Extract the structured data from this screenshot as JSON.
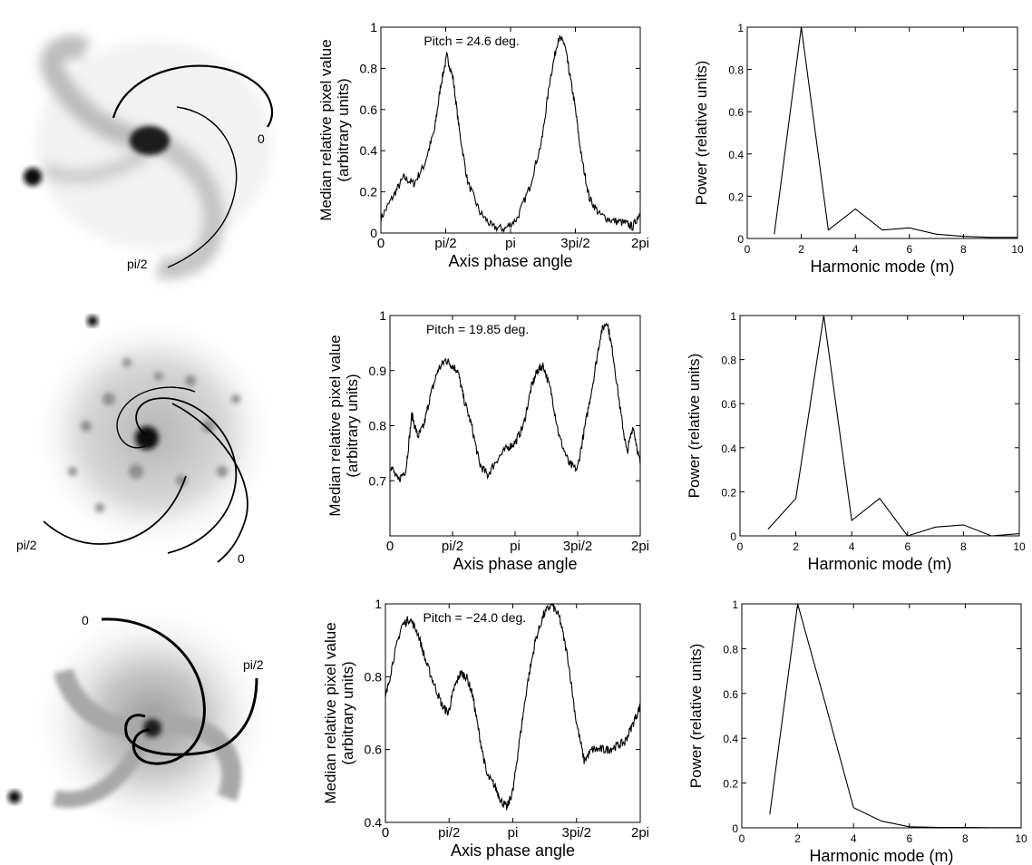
{
  "galaxies": [
    {
      "labels": [
        "0",
        "pi/2"
      ]
    },
    {
      "labels": [
        "pi/2",
        "0"
      ]
    },
    {
      "labels": [
        "0",
        "pi/2"
      ]
    }
  ],
  "chart_data": [
    {
      "type": "line",
      "annotation": "Pitch = 24.6 deg.",
      "xlabel": "Axis phase angle",
      "ylabel_lines": [
        "Median relative pixel value",
        "(arbitrary units)"
      ],
      "xlim": [
        0,
        6.2832
      ],
      "ylim": [
        0,
        1
      ],
      "xticks": [
        0,
        1.5708,
        3.1416,
        4.7124,
        6.2832
      ],
      "xticklabels": [
        "0",
        "pi/2",
        "pi",
        "3pi/2",
        "2pi"
      ],
      "yticks": [
        0,
        0.2,
        0.4,
        0.6,
        0.8,
        1
      ],
      "yticklabels": [
        "0",
        "0.2",
        "0.4",
        "0.6",
        "0.8",
        "1"
      ],
      "x": [
        0,
        0.3,
        0.55,
        0.8,
        1.05,
        1.3,
        1.45,
        1.6,
        1.75,
        1.9,
        2.1,
        2.4,
        2.7,
        3.0,
        3.3,
        3.6,
        3.9,
        4.1,
        4.3,
        4.45,
        4.55,
        4.7,
        4.85,
        5.05,
        5.3,
        5.6,
        5.9,
        6.1,
        6.2832
      ],
      "y": [
        0.07,
        0.18,
        0.27,
        0.24,
        0.33,
        0.5,
        0.72,
        0.86,
        0.75,
        0.5,
        0.25,
        0.1,
        0.03,
        0.02,
        0.07,
        0.22,
        0.45,
        0.75,
        0.95,
        0.92,
        0.8,
        0.62,
        0.38,
        0.17,
        0.09,
        0.06,
        0.05,
        0.03,
        0.1
      ],
      "noise": 0.02
    },
    {
      "type": "line",
      "xlabel": "Harmonic mode (m)",
      "ylabel": "Power (relative units)",
      "xlim": [
        0,
        10
      ],
      "ylim": [
        0,
        1
      ],
      "xticks": [
        0,
        2,
        4,
        6,
        8,
        10
      ],
      "xticklabels": [
        "0",
        "2",
        "4",
        "6",
        "8",
        "10"
      ],
      "yticks": [
        0,
        0.2,
        0.4,
        0.6,
        0.8,
        1
      ],
      "yticklabels": [
        "0",
        "0.2",
        "0.4",
        "0.6",
        "0.8",
        "1"
      ],
      "x": [
        1,
        2,
        3,
        4,
        5,
        6,
        7,
        8,
        9,
        10
      ],
      "y": [
        0.02,
        1.0,
        0.04,
        0.14,
        0.04,
        0.05,
        0.02,
        0.01,
        0.005,
        0.005
      ]
    },
    {
      "type": "line",
      "annotation": "Pitch = 19.85 deg.",
      "xlabel": "Axis phase angle",
      "ylabel_lines": [
        "Median relative pixel value",
        "(arbitrary units)"
      ],
      "xlim": [
        0,
        6.2832
      ],
      "ylim": [
        0.6,
        1
      ],
      "xticks": [
        0,
        1.5708,
        3.1416,
        4.7124,
        6.2832
      ],
      "xticklabels": [
        "0",
        "pi/2",
        "pi",
        "3pi/2",
        "2pi"
      ],
      "yticks": [
        0.7,
        0.8,
        0.9,
        1
      ],
      "yticklabels": [
        "0.7",
        "0.8",
        "0.9",
        "1"
      ],
      "x": [
        0,
        0.2,
        0.4,
        0.55,
        0.7,
        0.85,
        1.0,
        1.2,
        1.4,
        1.55,
        1.7,
        1.85,
        2.05,
        2.25,
        2.45,
        2.7,
        2.95,
        3.15,
        3.35,
        3.55,
        3.7,
        3.85,
        4.05,
        4.25,
        4.5,
        4.7,
        4.9,
        5.1,
        5.3,
        5.45,
        5.6,
        5.8,
        5.95,
        6.1,
        6.2832
      ],
      "y": [
        0.73,
        0.7,
        0.72,
        0.82,
        0.78,
        0.8,
        0.85,
        0.9,
        0.92,
        0.91,
        0.9,
        0.85,
        0.8,
        0.73,
        0.71,
        0.74,
        0.76,
        0.77,
        0.8,
        0.87,
        0.9,
        0.91,
        0.86,
        0.78,
        0.73,
        0.72,
        0.8,
        0.88,
        0.97,
        0.99,
        0.93,
        0.82,
        0.75,
        0.8,
        0.73
      ],
      "noise": 0.008
    },
    {
      "type": "line",
      "xlabel": "Harmonic mode (m)",
      "ylabel": "Power (relative units)",
      "xlim": [
        0,
        10
      ],
      "ylim": [
        0,
        1
      ],
      "xticks": [
        0,
        2,
        4,
        6,
        8,
        10
      ],
      "xticklabels": [
        "0",
        "2",
        "4",
        "6",
        "8",
        "10"
      ],
      "yticks": [
        0,
        0.2,
        0.4,
        0.6,
        0.8,
        1
      ],
      "yticklabels": [
        "0",
        "0.2",
        "0.4",
        "0.6",
        "0.8",
        "1"
      ],
      "x": [
        1,
        2,
        3,
        4,
        5,
        6,
        7,
        8,
        9,
        10
      ],
      "y": [
        0.03,
        0.17,
        1.0,
        0.07,
        0.17,
        0.0,
        0.04,
        0.05,
        0.0,
        0.01
      ]
    },
    {
      "type": "line",
      "annotation": "Pitch = −24.0 deg.",
      "xlabel": "Axis phase angle",
      "ylabel_lines": [
        "Median relative pixel value",
        "(arbitrary units)"
      ],
      "xlim": [
        0,
        6.2832
      ],
      "ylim": [
        0.4,
        1
      ],
      "xticks": [
        0,
        1.5708,
        3.1416,
        4.7124,
        6.2832
      ],
      "xticklabels": [
        "0",
        "pi/2",
        "pi",
        "3pi/2",
        "2pi"
      ],
      "yticks": [
        0.4,
        0.6,
        0.8,
        1
      ],
      "yticklabels": [
        "0.4",
        "0.6",
        "0.8",
        "1"
      ],
      "x": [
        0,
        0.2,
        0.4,
        0.6,
        0.8,
        1.0,
        1.2,
        1.4,
        1.55,
        1.7,
        1.85,
        2.0,
        2.15,
        2.3,
        2.5,
        2.7,
        2.85,
        3.0,
        3.15,
        3.3,
        3.5,
        3.7,
        3.9,
        4.1,
        4.3,
        4.5,
        4.7,
        4.9,
        5.1,
        5.3,
        5.5,
        5.7,
        5.9,
        6.1,
        6.2832
      ],
      "y": [
        0.74,
        0.85,
        0.94,
        0.96,
        0.92,
        0.84,
        0.78,
        0.72,
        0.7,
        0.77,
        0.81,
        0.8,
        0.75,
        0.65,
        0.53,
        0.5,
        0.46,
        0.44,
        0.49,
        0.62,
        0.78,
        0.9,
        0.97,
        1.0,
        0.96,
        0.85,
        0.68,
        0.57,
        0.6,
        0.6,
        0.6,
        0.61,
        0.62,
        0.67,
        0.72
      ],
      "noise": 0.012
    },
    {
      "type": "line",
      "xlabel": "Harmonic mode (m)",
      "ylabel": "Power (relative units)",
      "xlim": [
        0,
        10
      ],
      "ylim": [
        0,
        1
      ],
      "xticks": [
        0,
        2,
        4,
        6,
        8,
        10
      ],
      "xticklabels": [
        "0",
        "2",
        "4",
        "6",
        "8",
        "10"
      ],
      "yticks": [
        0,
        0.2,
        0.4,
        0.6,
        0.8,
        1
      ],
      "yticklabels": [
        "0",
        "0.2",
        "0.4",
        "0.6",
        "0.8",
        "1"
      ],
      "x": [
        1,
        2,
        3,
        4,
        5,
        6,
        7,
        8,
        9,
        10
      ],
      "y": [
        0.06,
        1.0,
        0.55,
        0.09,
        0.03,
        0.005,
        0.002,
        0.002,
        0.001,
        0.001
      ]
    }
  ]
}
